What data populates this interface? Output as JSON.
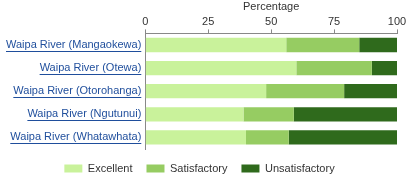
{
  "chart_data": {
    "type": "bar",
    "orientation": "horizontal",
    "stacked": true,
    "x_label": "Percentage",
    "categories": [
      "Waipa River (Mangaokewa)",
      "Waipa River (Otewa)",
      "Waipa River (Otorohanga)",
      "Waipa River (Ngutunui)",
      "Waipa River (Whatawhata)"
    ],
    "series": [
      {
        "name": "Excellent",
        "color": "#c9f29b",
        "values": [
          56,
          60,
          48,
          39,
          40
        ]
      },
      {
        "name": "Satisfactory",
        "color": "#96cc62",
        "values": [
          29,
          30,
          31,
          20,
          17
        ]
      },
      {
        "name": "Unsatisfactory",
        "color": "#2f6a1c",
        "values": [
          15,
          10,
          21,
          41,
          43
        ]
      }
    ],
    "xlim": [
      0,
      100
    ],
    "xticks": [
      0,
      25,
      50,
      75,
      100
    ],
    "grid": false,
    "legend": "bottom"
  }
}
